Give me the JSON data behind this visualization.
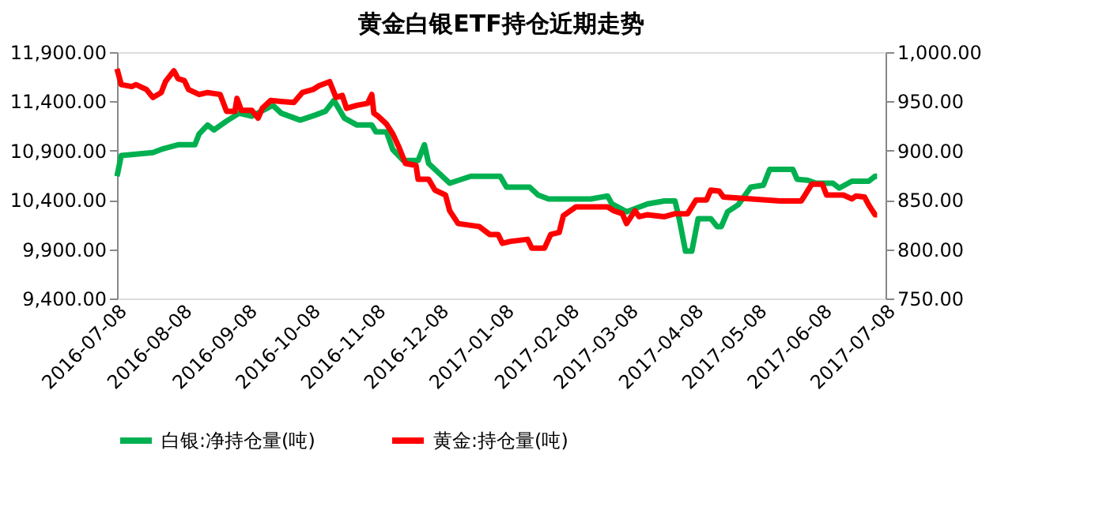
{
  "chart_data": {
    "type": "line",
    "title": "黄金白银ETF持仓近期走势",
    "xlim": [
      "2016-07-08",
      "2017-07-08"
    ],
    "xticks": [
      "2016-07-08",
      "2016-08-08",
      "2016-09-08",
      "2016-10-08",
      "2016-11-08",
      "2016-12-08",
      "2017-01-08",
      "2017-02-08",
      "2017-03-08",
      "2017-04-08",
      "2017-05-08",
      "2017-06-08",
      "2017-07-08"
    ],
    "ylim": [
      9400,
      11900
    ],
    "yticks": [
      {
        "value": 9400,
        "label": "9,400.00"
      },
      {
        "value": 9900,
        "label": "9,900.00"
      },
      {
        "value": 10400,
        "label": "10,400.00"
      },
      {
        "value": 10900,
        "label": "10,900.00"
      },
      {
        "value": 11400,
        "label": "11,400.00"
      },
      {
        "value": 11900,
        "label": "11,900.00"
      }
    ],
    "y2lim": [
      750,
      1000
    ],
    "y2ticks": [
      {
        "value": 750,
        "label": "750.00"
      },
      {
        "value": 800,
        "label": "800.00"
      },
      {
        "value": 850,
        "label": "850.00"
      },
      {
        "value": 900,
        "label": "900.00"
      },
      {
        "value": 950,
        "label": "950.00"
      },
      {
        "value": 1000,
        "label": "1,000.00"
      }
    ],
    "grid": false,
    "legend": "bottom",
    "marker": "none",
    "line_style": "solid",
    "series": [
      {
        "name": "白银:净持仓量(吨)",
        "color": "#00b050",
        "axis": "y",
        "x": [
          "2016-07-08",
          "2016-07-10",
          "2016-07-25",
          "2016-07-30",
          "2016-08-06",
          "2016-08-14",
          "2016-08-16",
          "2016-08-20",
          "2016-08-23",
          "2016-08-29",
          "2016-09-04",
          "2016-09-10",
          "2016-09-20",
          "2016-09-24",
          "2016-10-03",
          "2016-10-10",
          "2016-10-15",
          "2016-10-19",
          "2016-10-24",
          "2016-10-30",
          "2016-11-06",
          "2016-11-08",
          "2016-11-13",
          "2016-11-16",
          "2016-11-21",
          "2016-11-28",
          "2016-12-01",
          "2016-12-03",
          "2016-12-08",
          "2016-12-13",
          "2016-12-23",
          "2017-01-06",
          "2017-01-09",
          "2017-01-20",
          "2017-01-24",
          "2017-01-29",
          "2017-02-18",
          "2017-02-26",
          "2017-02-28",
          "2017-03-07",
          "2017-03-17",
          "2017-03-25",
          "2017-03-30",
          "2017-04-01",
          "2017-04-04",
          "2017-04-07",
          "2017-04-10",
          "2017-04-16",
          "2017-04-19",
          "2017-04-21",
          "2017-04-24",
          "2017-04-29",
          "2017-05-05",
          "2017-05-11",
          "2017-05-14",
          "2017-05-25",
          "2017-05-27",
          "2017-06-01",
          "2017-06-05",
          "2017-06-13",
          "2017-06-16",
          "2017-06-22",
          "2017-06-30",
          "2017-07-03",
          "2017-07-04"
        ],
        "values": [
          10640,
          10850,
          10880,
          10920,
          10960,
          10960,
          11070,
          11160,
          11110,
          11200,
          11280,
          11250,
          11360,
          11280,
          11210,
          11260,
          11300,
          11410,
          11230,
          11160,
          11160,
          11090,
          11090,
          10910,
          10800,
          10800,
          10960,
          10770,
          10670,
          10570,
          10640,
          10640,
          10530,
          10530,
          10450,
          10410,
          10410,
          10440,
          10360,
          10280,
          10360,
          10390,
          10390,
          10210,
          9880,
          9880,
          10210,
          10210,
          10130,
          10130,
          10280,
          10350,
          10530,
          10550,
          10710,
          10710,
          10610,
          10600,
          10570,
          10570,
          10520,
          10590,
          10590,
          10640,
          10640
        ]
      },
      {
        "name": "黄金:持仓量(吨)",
        "color": "#ff0000",
        "axis": "y2",
        "x": [
          "2016-07-08",
          "2016-07-10",
          "2016-07-15",
          "2016-07-17",
          "2016-07-22",
          "2016-07-25",
          "2016-07-29",
          "2016-07-31",
          "2016-08-04",
          "2016-08-06",
          "2016-08-09",
          "2016-08-11",
          "2016-08-16",
          "2016-08-20",
          "2016-08-26",
          "2016-08-29",
          "2016-09-02",
          "2016-09-03",
          "2016-09-05",
          "2016-09-10",
          "2016-09-13",
          "2016-09-15",
          "2016-09-19",
          "2016-09-24",
          "2016-09-30",
          "2016-10-04",
          "2016-10-09",
          "2016-10-12",
          "2016-10-17",
          "2016-10-20",
          "2016-10-23",
          "2016-10-25",
          "2016-10-30",
          "2016-11-04",
          "2016-11-06",
          "2016-11-07",
          "2016-11-09",
          "2016-11-13",
          "2016-11-16",
          "2016-11-19",
          "2016-11-22",
          "2016-11-27",
          "2016-11-28",
          "2016-12-03",
          "2016-12-06",
          "2016-12-11",
          "2016-12-13",
          "2016-12-17",
          "2016-12-27",
          "2017-01-01",
          "2017-01-05",
          "2017-01-07",
          "2017-01-11",
          "2017-01-19",
          "2017-01-21",
          "2017-01-27",
          "2017-01-30",
          "2017-02-03",
          "2017-02-05",
          "2017-02-11",
          "2017-02-26",
          "2017-03-01",
          "2017-03-05",
          "2017-03-07",
          "2017-03-11",
          "2017-03-13",
          "2017-03-17",
          "2017-03-25",
          "2017-03-30",
          "2017-04-05",
          "2017-04-09",
          "2017-04-14",
          "2017-04-16",
          "2017-04-20",
          "2017-04-22",
          "2017-05-19",
          "2017-05-29",
          "2017-06-03",
          "2017-06-08",
          "2017-06-10",
          "2017-06-18",
          "2017-06-22",
          "2017-06-24",
          "2017-06-28",
          "2017-06-30",
          "2017-07-03",
          "2017-07-04"
        ],
        "values": [
          983,
          967,
          965,
          967,
          962,
          954,
          959,
          970,
          981,
          973,
          971,
          962,
          957,
          959,
          957,
          940,
          940,
          953,
          941,
          941,
          933,
          943,
          951,
          950,
          949,
          959,
          962,
          966,
          970,
          954,
          956,
          943,
          946,
          948,
          957,
          938,
          935,
          927,
          917,
          903,
          887,
          885,
          871,
          871,
          860,
          855,
          839,
          826,
          823,
          815,
          815,
          806,
          808,
          810,
          801,
          801,
          815,
          817,
          834,
          843,
          843,
          839,
          836,
          826,
          839,
          833,
          835,
          833,
          836,
          836,
          850,
          850,
          860,
          859,
          853,
          849,
          849,
          866,
          866,
          855,
          855,
          851,
          854,
          853,
          845,
          835,
          835
        ]
      }
    ]
  }
}
